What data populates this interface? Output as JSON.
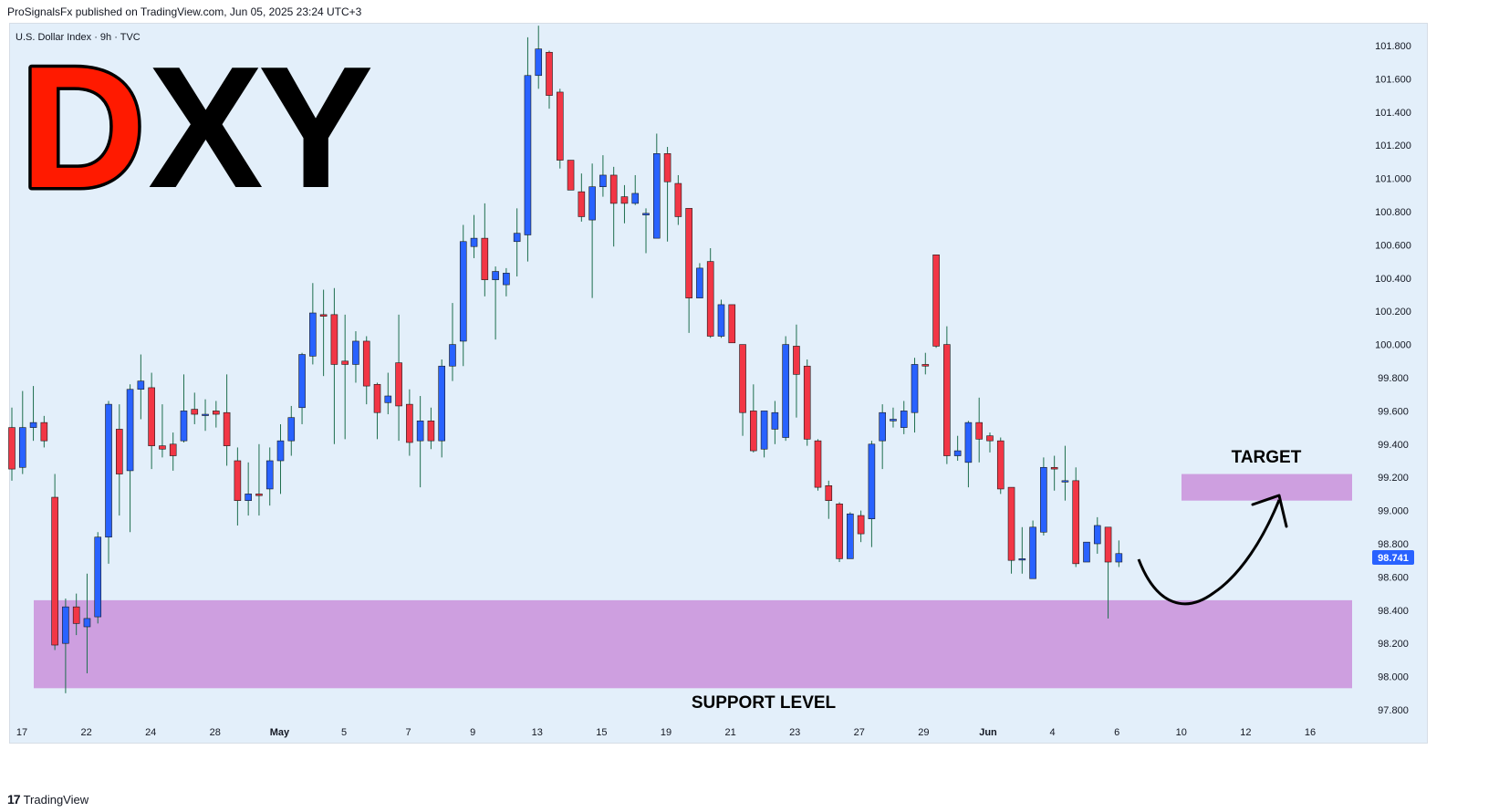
{
  "header": {
    "publisher_line": "ProSignalsFx published on TradingView.com, Jun 05, 2025 23:24 UTC+3"
  },
  "chart_header": {
    "symbol_line": "U.S. Dollar Index · 9h · TVC"
  },
  "logo": {
    "letter_d": "D",
    "letters_xy": "XY",
    "d_color": "#ff1a00",
    "xy_color": "#000000"
  },
  "annotations": {
    "support_label": "SUPPORT LEVEL",
    "target_label": "TARGET",
    "zone_color": "#ce9fe0"
  },
  "price_tag": {
    "value": "98.741",
    "color": "#2962ff"
  },
  "footer": {
    "brand": "TradingView",
    "brand_mark": "17"
  },
  "colors": {
    "up": "#2962ff",
    "down": "#f23645",
    "background": "#e3effa"
  },
  "chart_data": {
    "type": "candlestick",
    "title": "U.S. Dollar Index · 9h · TVC",
    "ylim": [
      97.8,
      101.8
    ],
    "y_ticks": [
      "97.800",
      "98.000",
      "98.200",
      "98.400",
      "98.600",
      "98.800",
      "99.000",
      "99.200",
      "99.400",
      "99.600",
      "99.800",
      "100.000",
      "100.200",
      "100.400",
      "100.600",
      "100.800",
      "101.000",
      "101.200",
      "101.400",
      "101.600",
      "101.800"
    ],
    "x_ticks": [
      "17",
      "22",
      "24",
      "28",
      "May",
      "5",
      "7",
      "9",
      "13",
      "15",
      "19",
      "21",
      "23",
      "27",
      "29",
      "Jun",
      "4",
      "6",
      "10",
      "12",
      "16"
    ],
    "support_zone": [
      97.93,
      98.46
    ],
    "target_zone": [
      99.06,
      99.22
    ],
    "last_price": 98.741,
    "candles": [
      [
        99.5,
        99.25,
        99.62,
        99.18
      ],
      [
        99.26,
        99.5,
        99.72,
        99.22
      ],
      [
        99.5,
        99.53,
        99.75,
        99.42
      ],
      [
        99.53,
        99.42,
        99.57,
        99.38
      ],
      [
        99.08,
        98.19,
        99.22,
        98.16
      ],
      [
        98.2,
        98.42,
        98.47,
        97.9
      ],
      [
        98.42,
        98.32,
        98.5,
        98.25
      ],
      [
        98.3,
        98.35,
        98.62,
        98.02
      ],
      [
        98.36,
        98.84,
        98.87,
        98.32
      ],
      [
        98.84,
        99.64,
        99.66,
        98.68
      ],
      [
        99.49,
        99.22,
        99.64,
        98.97
      ],
      [
        99.24,
        99.73,
        99.76,
        98.87
      ],
      [
        99.73,
        99.78,
        99.94,
        99.55
      ],
      [
        99.74,
        99.39,
        99.83,
        99.25
      ],
      [
        99.39,
        99.37,
        99.64,
        99.32
      ],
      [
        99.4,
        99.33,
        99.47,
        99.24
      ],
      [
        99.42,
        99.6,
        99.82,
        99.41
      ],
      [
        99.61,
        99.58,
        99.71,
        99.52
      ],
      [
        99.58,
        99.58,
        99.67,
        99.48
      ],
      [
        99.6,
        99.58,
        99.66,
        99.5
      ],
      [
        99.59,
        99.39,
        99.82,
        99.27
      ],
      [
        99.3,
        99.06,
        99.38,
        98.91
      ],
      [
        99.06,
        99.1,
        99.29,
        98.97
      ],
      [
        99.1,
        99.09,
        99.4,
        98.97
      ],
      [
        99.13,
        99.3,
        99.38,
        99.03
      ],
      [
        99.3,
        99.42,
        99.52,
        99.1
      ],
      [
        99.42,
        99.56,
        99.63,
        99.33
      ],
      [
        99.62,
        99.94,
        99.95,
        99.52
      ],
      [
        99.93,
        100.19,
        100.37,
        99.88
      ],
      [
        100.18,
        100.17,
        100.33,
        99.81
      ],
      [
        100.18,
        99.88,
        100.34,
        99.4
      ],
      [
        99.9,
        99.88,
        100.18,
        99.43
      ],
      [
        99.88,
        100.02,
        100.08,
        99.77
      ],
      [
        100.02,
        99.75,
        100.05,
        99.64
      ],
      [
        99.76,
        99.59,
        99.77,
        99.43
      ],
      [
        99.65,
        99.69,
        99.83,
        99.58
      ],
      [
        99.89,
        99.63,
        100.18,
        99.42
      ],
      [
        99.64,
        99.41,
        99.73,
        99.33
      ],
      [
        99.42,
        99.54,
        99.69,
        99.14
      ],
      [
        99.54,
        99.42,
        99.62,
        99.37
      ],
      [
        99.42,
        99.87,
        99.91,
        99.32
      ],
      [
        99.87,
        100.0,
        100.25,
        99.78
      ],
      [
        100.02,
        100.62,
        100.72,
        99.87
      ],
      [
        100.59,
        100.64,
        100.78,
        100.52
      ],
      [
        100.64,
        100.39,
        100.85,
        100.29
      ],
      [
        100.39,
        100.44,
        100.47,
        100.03
      ],
      [
        100.36,
        100.43,
        100.46,
        100.29
      ],
      [
        100.62,
        100.67,
        100.82,
        100.41
      ],
      [
        100.66,
        101.62,
        101.85,
        100.5
      ],
      [
        101.62,
        101.78,
        101.92,
        101.54
      ],
      [
        101.76,
        101.5,
        101.77,
        101.42
      ],
      [
        101.52,
        101.11,
        101.54,
        101.06
      ],
      [
        101.11,
        100.93,
        101.11,
        100.93
      ],
      [
        100.92,
        100.77,
        101.03,
        100.74
      ],
      [
        100.75,
        100.95,
        101.09,
        100.28
      ],
      [
        100.95,
        101.02,
        101.14,
        100.89
      ],
      [
        101.02,
        100.85,
        101.07,
        100.59
      ],
      [
        100.89,
        100.85,
        100.96,
        100.73
      ],
      [
        100.85,
        100.91,
        101.02,
        100.84
      ],
      [
        100.78,
        100.79,
        100.82,
        100.55
      ],
      [
        100.64,
        101.15,
        101.27,
        100.64
      ],
      [
        101.15,
        100.98,
        101.19,
        100.62
      ],
      [
        100.97,
        100.77,
        101.02,
        100.72
      ],
      [
        100.82,
        100.28,
        100.82,
        100.07
      ],
      [
        100.28,
        100.46,
        100.49,
        100.31
      ],
      [
        100.5,
        100.05,
        100.58,
        100.04
      ],
      [
        100.05,
        100.24,
        100.27,
        100.04
      ],
      [
        100.24,
        100.01,
        100.24,
        100.01
      ],
      [
        100.0,
        99.59,
        100.0,
        99.45
      ],
      [
        99.6,
        99.36,
        99.76,
        99.35
      ],
      [
        99.37,
        99.6,
        99.6,
        99.32
      ],
      [
        99.49,
        99.59,
        99.66,
        99.4
      ],
      [
        99.44,
        100.0,
        100.05,
        99.42
      ],
      [
        99.99,
        99.82,
        100.12,
        99.56
      ],
      [
        99.87,
        99.43,
        99.91,
        99.39
      ],
      [
        99.42,
        99.14,
        99.43,
        99.12
      ],
      [
        99.15,
        99.06,
        99.18,
        98.95
      ],
      [
        99.04,
        98.71,
        99.05,
        98.69
      ],
      [
        98.71,
        98.98,
        98.99,
        98.74
      ],
      [
        98.97,
        98.86,
        99.0,
        98.81
      ],
      [
        98.95,
        99.4,
        99.42,
        98.78
      ],
      [
        99.42,
        99.59,
        99.64,
        99.25
      ],
      [
        99.54,
        99.55,
        99.62,
        99.5
      ],
      [
        99.5,
        99.6,
        99.66,
        99.46
      ],
      [
        99.59,
        99.88,
        99.92,
        99.47
      ],
      [
        99.88,
        99.87,
        99.95,
        99.82
      ],
      [
        100.54,
        99.99,
        100.54,
        99.98
      ],
      [
        100.0,
        99.33,
        100.11,
        99.28
      ],
      [
        99.33,
        99.36,
        99.45,
        99.3
      ],
      [
        99.29,
        99.53,
        99.54,
        99.14
      ],
      [
        99.53,
        99.43,
        99.68,
        99.29
      ],
      [
        99.45,
        99.42,
        99.47,
        99.35
      ],
      [
        99.42,
        99.13,
        99.44,
        99.1
      ],
      [
        99.14,
        98.7,
        99.14,
        98.62
      ],
      [
        98.71,
        98.71,
        98.9,
        98.62
      ],
      [
        98.59,
        98.9,
        98.94,
        98.59
      ],
      [
        98.87,
        99.26,
        99.32,
        98.85
      ],
      [
        99.26,
        99.25,
        99.33,
        99.12
      ],
      [
        99.18,
        99.18,
        99.39,
        99.06
      ],
      [
        99.18,
        98.68,
        99.26,
        98.66
      ],
      [
        98.69,
        98.81,
        98.81,
        98.69
      ],
      [
        98.8,
        98.91,
        98.96,
        98.74
      ],
      [
        98.9,
        98.69,
        98.9,
        98.35
      ],
      [
        98.69,
        98.741,
        98.82,
        98.66
      ]
    ]
  }
}
